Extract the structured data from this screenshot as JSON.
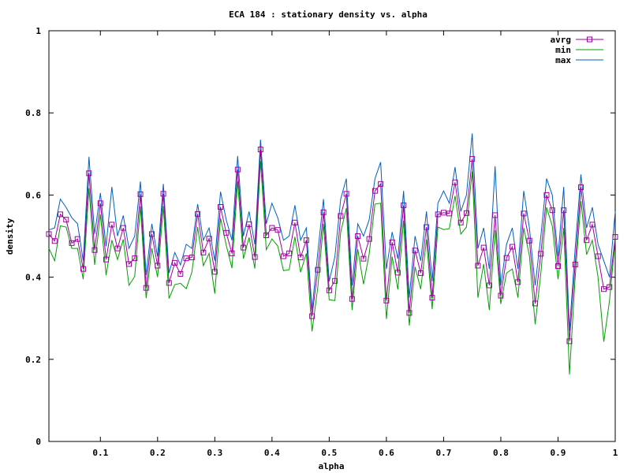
{
  "chart_data": {
    "type": "line",
    "title": "ECA 184 : stationary density vs. alpha",
    "xlabel": "alpha",
    "ylabel": "density",
    "xlim": [
      0.01,
      1.0
    ],
    "ylim": [
      0,
      1
    ],
    "x_ticks": [
      "0.1",
      "0.2",
      "0.3",
      "0.4",
      "0.5",
      "0.6",
      "0.7",
      "0.8",
      "0.9",
      "1"
    ],
    "y_ticks": [
      "0",
      "0.2",
      "0.4",
      "0.6",
      "0.8",
      "1"
    ],
    "grid": false,
    "legend_position": "top-right",
    "x": [
      0.01,
      0.02,
      0.03,
      0.04,
      0.05,
      0.06,
      0.07,
      0.08,
      0.09,
      0.1,
      0.11,
      0.12,
      0.13,
      0.14,
      0.15,
      0.16,
      0.17,
      0.18,
      0.19,
      0.2,
      0.21,
      0.22,
      0.23,
      0.24,
      0.25,
      0.26,
      0.27,
      0.28,
      0.29,
      0.3,
      0.31,
      0.32,
      0.33,
      0.34,
      0.35,
      0.36,
      0.37,
      0.38,
      0.39,
      0.4,
      0.41,
      0.42,
      0.43,
      0.44,
      0.45,
      0.46,
      0.47,
      0.48,
      0.49,
      0.5,
      0.51,
      0.52,
      0.53,
      0.54,
      0.55,
      0.56,
      0.57,
      0.58,
      0.59,
      0.6,
      0.61,
      0.62,
      0.63,
      0.64,
      0.65,
      0.66,
      0.67,
      0.68,
      0.69,
      0.7,
      0.71,
      0.72,
      0.73,
      0.74,
      0.75,
      0.76,
      0.77,
      0.78,
      0.79,
      0.8,
      0.81,
      0.82,
      0.83,
      0.84,
      0.85,
      0.86,
      0.87,
      0.88,
      0.89,
      0.9,
      0.91,
      0.92,
      0.93,
      0.94,
      0.95,
      0.96,
      0.97,
      0.98,
      0.99,
      1.0
    ],
    "series": [
      {
        "name": "avrg",
        "color": "#a000a0",
        "marker": "square",
        "values": [
          0.505,
          0.488,
          0.553,
          0.54,
          0.483,
          0.493,
          0.42,
          0.653,
          0.466,
          0.58,
          0.443,
          0.528,
          0.47,
          0.52,
          0.432,
          0.446,
          0.602,
          0.374,
          0.505,
          0.428,
          0.603,
          0.386,
          0.435,
          0.408,
          0.446,
          0.448,
          0.554,
          0.46,
          0.494,
          0.413,
          0.571,
          0.508,
          0.458,
          0.662,
          0.472,
          0.529,
          0.449,
          0.711,
          0.502,
          0.52,
          0.515,
          0.451,
          0.458,
          0.533,
          0.448,
          0.49,
          0.305,
          0.418,
          0.558,
          0.368,
          0.391,
          0.549,
          0.603,
          0.347,
          0.5,
          0.445,
          0.493,
          0.61,
          0.627,
          0.343,
          0.485,
          0.411,
          0.575,
          0.313,
          0.465,
          0.41,
          0.522,
          0.35,
          0.553,
          0.557,
          0.555,
          0.631,
          0.533,
          0.556,
          0.688,
          0.428,
          0.472,
          0.38,
          0.551,
          0.355,
          0.447,
          0.474,
          0.388,
          0.555,
          0.489,
          0.336,
          0.457,
          0.6,
          0.563,
          0.427,
          0.563,
          0.244,
          0.431,
          0.619,
          0.49,
          0.528,
          0.451,
          0.371,
          0.376,
          0.498
        ]
      },
      {
        "name": "min",
        "color": "#00a000",
        "values": [
          0.47,
          0.44,
          0.525,
          0.522,
          0.47,
          0.47,
          0.395,
          0.617,
          0.43,
          0.553,
          0.405,
          0.49,
          0.443,
          0.492,
          0.38,
          0.402,
          0.572,
          0.349,
          0.47,
          0.4,
          0.573,
          0.348,
          0.382,
          0.385,
          0.372,
          0.412,
          0.522,
          0.428,
          0.458,
          0.36,
          0.544,
          0.478,
          0.422,
          0.634,
          0.445,
          0.497,
          0.421,
          0.683,
          0.467,
          0.493,
          0.476,
          0.416,
          0.418,
          0.498,
          0.412,
          0.458,
          0.268,
          0.375,
          0.53,
          0.345,
          0.343,
          0.509,
          0.568,
          0.32,
          0.468,
          0.383,
          0.457,
          0.578,
          0.58,
          0.298,
          0.45,
          0.37,
          0.538,
          0.282,
          0.425,
          0.371,
          0.492,
          0.322,
          0.522,
          0.516,
          0.518,
          0.598,
          0.505,
          0.522,
          0.657,
          0.35,
          0.432,
          0.32,
          0.515,
          0.335,
          0.41,
          0.42,
          0.35,
          0.52,
          0.452,
          0.285,
          0.41,
          0.57,
          0.524,
          0.395,
          0.52,
          0.163,
          0.399,
          0.585,
          0.455,
          0.49,
          0.4,
          0.243,
          0.342,
          0.49
        ]
      },
      {
        "name": "max",
        "color": "#0060c0",
        "values": [
          0.515,
          0.52,
          0.59,
          0.57,
          0.545,
          0.53,
          0.44,
          0.693,
          0.505,
          0.605,
          0.475,
          0.62,
          0.5,
          0.55,
          0.47,
          0.5,
          0.633,
          0.405,
          0.53,
          0.45,
          0.627,
          0.41,
          0.46,
          0.43,
          0.48,
          0.47,
          0.578,
          0.49,
          0.52,
          0.44,
          0.608,
          0.54,
          0.49,
          0.695,
          0.5,
          0.56,
          0.48,
          0.735,
          0.53,
          0.58,
          0.545,
          0.49,
          0.5,
          0.575,
          0.49,
          0.52,
          0.32,
          0.46,
          0.59,
          0.39,
          0.45,
          0.59,
          0.64,
          0.38,
          0.53,
          0.5,
          0.54,
          0.64,
          0.68,
          0.42,
          0.51,
          0.445,
          0.61,
          0.35,
          0.5,
          0.44,
          0.56,
          0.39,
          0.58,
          0.61,
          0.58,
          0.668,
          0.56,
          0.6,
          0.75,
          0.47,
          0.52,
          0.42,
          0.67,
          0.38,
          0.48,
          0.52,
          0.42,
          0.61,
          0.52,
          0.38,
          0.5,
          0.64,
          0.6,
          0.45,
          0.62,
          0.27,
          0.47,
          0.65,
          0.52,
          0.57,
          0.48,
          0.44,
          0.4,
          0.56
        ]
      }
    ]
  }
}
